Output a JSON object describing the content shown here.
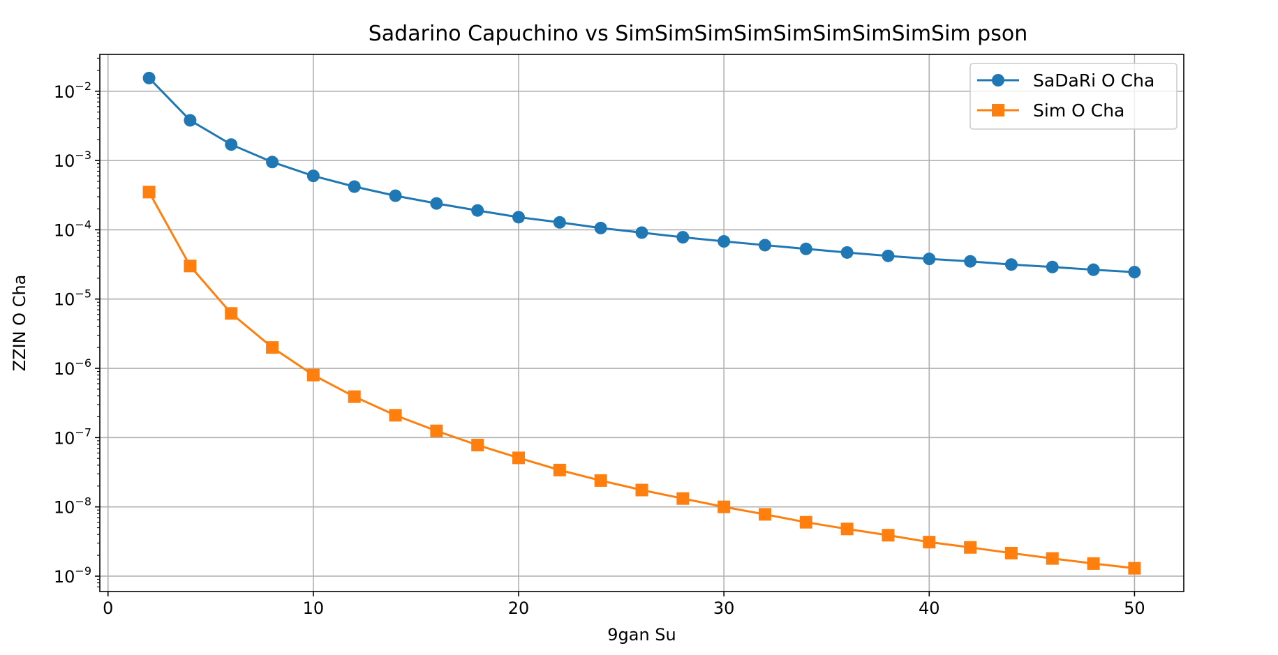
{
  "chart_data": {
    "type": "line",
    "title": "Sadarino Capuchino vs SimSimSimSimSimSimSimSimSim pson",
    "xlabel": "9gan Su",
    "ylabel": "ZZIN O Cha",
    "y_scale": "log",
    "xlim": [
      -0.4,
      52.4
    ],
    "ylim": [
      6e-10,
      0.034
    ],
    "x_ticks": [
      0,
      10,
      20,
      30,
      40,
      50
    ],
    "x_tick_labels": [
      "0",
      "10",
      "20",
      "30",
      "40",
      "50"
    ],
    "y_ticks": [
      1e-09,
      1e-08,
      1e-07,
      1e-06,
      1e-05,
      0.0001,
      0.001,
      0.01
    ],
    "y_tick_bases": [
      "10",
      "10",
      "10",
      "10",
      "10",
      "10",
      "10",
      "10"
    ],
    "y_tick_exponents": [
      "−9",
      "−8",
      "−7",
      "−6",
      "−5",
      "−4",
      "−3",
      "−2"
    ],
    "grid": true,
    "legend_position": "top-right",
    "x": [
      2,
      4,
      6,
      8,
      10,
      12,
      14,
      16,
      18,
      20,
      22,
      24,
      26,
      28,
      30,
      32,
      34,
      36,
      38,
      40,
      42,
      44,
      46,
      48,
      50
    ],
    "series": [
      {
        "name": "SaDaRi O Cha",
        "color": "#1f77b4",
        "marker": "circle",
        "values": [
          0.0155,
          0.0038,
          0.0017,
          0.00095,
          0.0006,
          0.00042,
          0.00031,
          0.00024,
          0.00019,
          0.000152,
          0.000128,
          0.000106,
          9.1e-05,
          7.8e-05,
          6.8e-05,
          6e-05,
          5.3e-05,
          4.7e-05,
          4.2e-05,
          3.8e-05,
          3.5e-05,
          3.15e-05,
          2.9e-05,
          2.65e-05,
          2.45e-05
        ]
      },
      {
        "name": "Sim O Cha",
        "color": "#ff7f0e",
        "marker": "square",
        "values": [
          0.00035,
          3e-05,
          6.2e-06,
          2e-06,
          8e-07,
          3.9e-07,
          2.1e-07,
          1.25e-07,
          7.8e-08,
          5.1e-08,
          3.4e-08,
          2.4e-08,
          1.75e-08,
          1.32e-08,
          1e-08,
          7.8e-09,
          6e-09,
          4.8e-09,
          3.9e-09,
          3.1e-09,
          2.6e-09,
          2.15e-09,
          1.8e-09,
          1.52e-09,
          1.3e-09
        ]
      }
    ]
  }
}
